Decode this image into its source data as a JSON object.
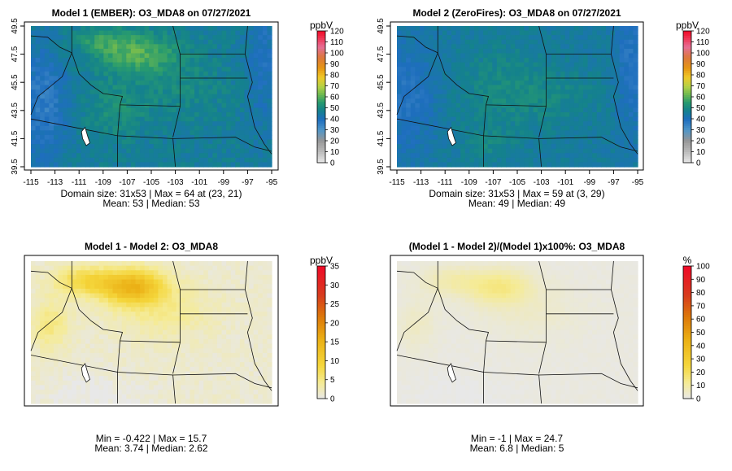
{
  "chart_data": [
    {
      "type": "heatmap",
      "title": "Model 1 (EMBER): O3_MDA8 on 07/27/2021",
      "x": [
        -115,
        -113,
        -111,
        -109,
        -107,
        -105,
        -103,
        -101,
        -99,
        -97,
        -95
      ],
      "y": [
        39.5,
        41.5,
        43.5,
        45.5,
        47.5,
        49.5
      ],
      "xlabels": [
        "-115",
        "-113",
        "-111",
        "-109",
        "-107",
        "-105",
        "-103",
        "-101",
        "-99",
        "-97",
        "-95"
      ],
      "ylabels": [
        "39.5",
        "41.5",
        "43.5",
        "45.5",
        "47.5",
        "49.5"
      ],
      "legend_unit": "ppbV",
      "legend_ticks": [
        "0",
        "10",
        "20",
        "30",
        "40",
        "50",
        "60",
        "70",
        "80",
        "90",
        "100",
        "110",
        "120"
      ],
      "legend_range": [
        0,
        120
      ],
      "stats_line1": "Domain size: 31x53 | Max = 64 at (23, 21)",
      "stats_line2": "Mean: 53 |  Median: 53",
      "colormap": "ozone",
      "domain_size": [
        31,
        53
      ],
      "max": 64,
      "mean": 53,
      "median": 53
    },
    {
      "type": "heatmap",
      "title": "Model 2 (ZeroFires): O3_MDA8 on 07/27/2021",
      "x": [
        -115,
        -113,
        -111,
        -109,
        -107,
        -105,
        -103,
        -101,
        -99,
        -97,
        -95
      ],
      "y": [
        39.5,
        41.5,
        43.5,
        45.5,
        47.5,
        49.5
      ],
      "xlabels": [
        "-115",
        "-113",
        "-111",
        "-109",
        "-107",
        "-105",
        "-103",
        "-101",
        "-99",
        "-97",
        "-95"
      ],
      "ylabels": [
        "39.5",
        "41.5",
        "43.5",
        "45.5",
        "47.5",
        "49.5"
      ],
      "legend_unit": "ppbV",
      "legend_ticks": [
        "0",
        "10",
        "20",
        "30",
        "40",
        "50",
        "60",
        "70",
        "80",
        "90",
        "100",
        "110",
        "120"
      ],
      "legend_range": [
        0,
        120
      ],
      "stats_line1": "Domain size: 31x53 | Max = 59 at (3, 29)",
      "stats_line2": "Mean: 49 |  Median: 49",
      "colormap": "ozone",
      "domain_size": [
        31,
        53
      ],
      "max": 59,
      "mean": 49,
      "median": 49
    },
    {
      "type": "heatmap",
      "title": "Model 1 - Model 2: O3_MDA8",
      "legend_unit": "ppbV",
      "legend_ticks": [
        "0",
        "5",
        "10",
        "15",
        "20",
        "25",
        "30",
        "35"
      ],
      "legend_range": [
        0,
        35
      ],
      "stats_line1": "Min = -0.422 | Max = 15.7",
      "stats_line2": "Mean: 3.74 |  Median: 2.62",
      "colormap": "diff",
      "min": -0.422,
      "max": 15.7,
      "mean": 3.74,
      "median": 2.62
    },
    {
      "type": "heatmap",
      "title": "(Model 1 - Model 2)/(Model 1)x100%: O3_MDA8",
      "legend_unit": "%",
      "legend_ticks": [
        "0",
        "10",
        "20",
        "30",
        "40",
        "50",
        "60",
        "70",
        "80",
        "90",
        "100"
      ],
      "legend_range": [
        0,
        100
      ],
      "stats_line1": "Min = -1 | Max = 24.7",
      "stats_line2": "Mean: 6.8 |  Median: 5",
      "colormap": "diff",
      "min": -1,
      "max": 24.7,
      "mean": 6.8,
      "median": 5
    }
  ]
}
